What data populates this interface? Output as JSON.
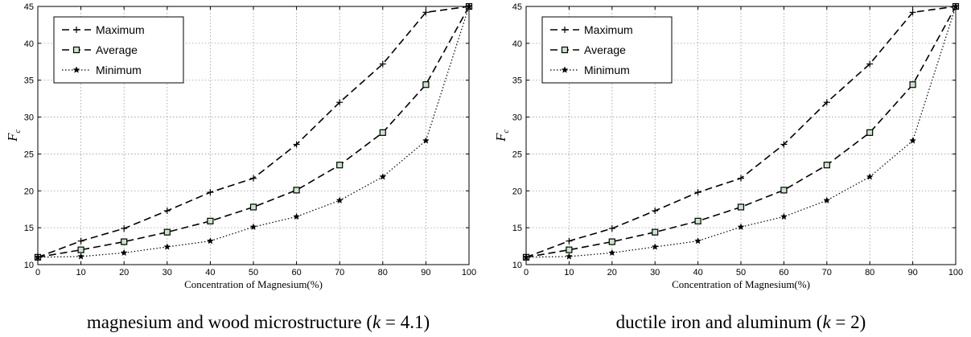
{
  "chart_data": [
    {
      "type": "line",
      "caption": {
        "prefix": "magnesium and wood microstructure (",
        "var": "k",
        "suffix": " = 4.1)"
      },
      "xlabel": "Concentration of Magnesium(%)",
      "ylabel": {
        "main": "F",
        "sub": "c"
      },
      "xlim": [
        0,
        100
      ],
      "ylim": [
        10,
        45
      ],
      "xticks": [
        0,
        10,
        20,
        30,
        40,
        50,
        60,
        70,
        80,
        90,
        100
      ],
      "yticks": [
        10,
        15,
        20,
        25,
        30,
        35,
        40,
        45
      ],
      "grid": true,
      "legend_position": "top-left",
      "x": [
        0,
        10,
        20,
        30,
        40,
        50,
        60,
        70,
        80,
        90,
        100
      ],
      "series": [
        {
          "name": "Maximum",
          "style": "dashed",
          "marker": "plus",
          "values": [
            11,
            13.2,
            14.9,
            17.3,
            19.8,
            21.7,
            26.3,
            32.0,
            37.2,
            44.2,
            45
          ]
        },
        {
          "name": "Average",
          "style": "dashed",
          "marker": "square",
          "values": [
            11,
            12.0,
            13.1,
            14.4,
            15.9,
            17.8,
            20.1,
            23.5,
            27.9,
            34.4,
            45
          ]
        },
        {
          "name": "Minimum",
          "style": "dotted",
          "marker": "star",
          "values": [
            11,
            11.1,
            11.6,
            12.4,
            13.2,
            15.1,
            16.5,
            18.7,
            21.9,
            26.8,
            45
          ]
        }
      ]
    },
    {
      "type": "line",
      "caption": {
        "prefix": "ductile iron and aluminum (",
        "var": "k",
        "suffix": " = 2)"
      },
      "xlabel": "Concentration of Magnesium(%)",
      "ylabel": {
        "main": "F",
        "sub": "c"
      },
      "xlim": [
        0,
        100
      ],
      "ylim": [
        10,
        45
      ],
      "xticks": [
        0,
        10,
        20,
        30,
        40,
        50,
        60,
        70,
        80,
        90,
        100
      ],
      "yticks": [
        10,
        15,
        20,
        25,
        30,
        35,
        40,
        45
      ],
      "grid": true,
      "legend_position": "top-left",
      "x": [
        0,
        10,
        20,
        30,
        40,
        50,
        60,
        70,
        80,
        90,
        100
      ],
      "series": [
        {
          "name": "Maximum",
          "style": "dashed",
          "marker": "plus",
          "values": [
            11,
            13.2,
            14.9,
            17.3,
            19.8,
            21.7,
            26.3,
            32.0,
            37.2,
            44.2,
            45
          ]
        },
        {
          "name": "Average",
          "style": "dashed",
          "marker": "square",
          "values": [
            11,
            12.0,
            13.1,
            14.4,
            15.9,
            17.8,
            20.1,
            23.5,
            27.9,
            34.4,
            45
          ]
        },
        {
          "name": "Minimum",
          "style": "dotted",
          "marker": "star",
          "values": [
            11,
            11.1,
            11.6,
            12.4,
            13.2,
            15.1,
            16.5,
            18.7,
            21.9,
            26.8,
            45
          ]
        }
      ]
    }
  ],
  "colors": {
    "line": "#000000",
    "grid": "#999999",
    "average_marker_fill": "#c8e6c8"
  }
}
